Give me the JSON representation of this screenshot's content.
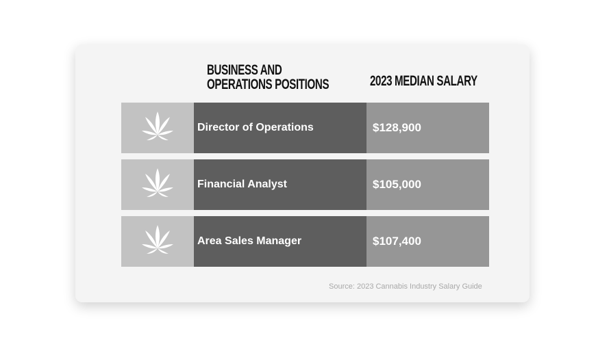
{
  "headers": {
    "positions_line1": "BUSINESS AND",
    "positions_line2": "OPERATIONS POSITIONS",
    "salary": "2023 MEDIAN SALARY"
  },
  "rows": [
    {
      "icon": "cannabis-leaf-icon",
      "position": "Director of Operations",
      "salary": "$128,900"
    },
    {
      "icon": "cannabis-leaf-icon",
      "position": "Financial Analyst",
      "salary": "$105,000"
    },
    {
      "icon": "cannabis-leaf-icon",
      "position": "Area Sales Manager",
      "salary": "$107,400"
    }
  ],
  "source": "Source: 2023 Cannabis Industry Salary Guide",
  "colors": {
    "icon_cell": "#c2c2c2",
    "name_cell": "#5e5e5e",
    "salary_cell": "#969696"
  }
}
